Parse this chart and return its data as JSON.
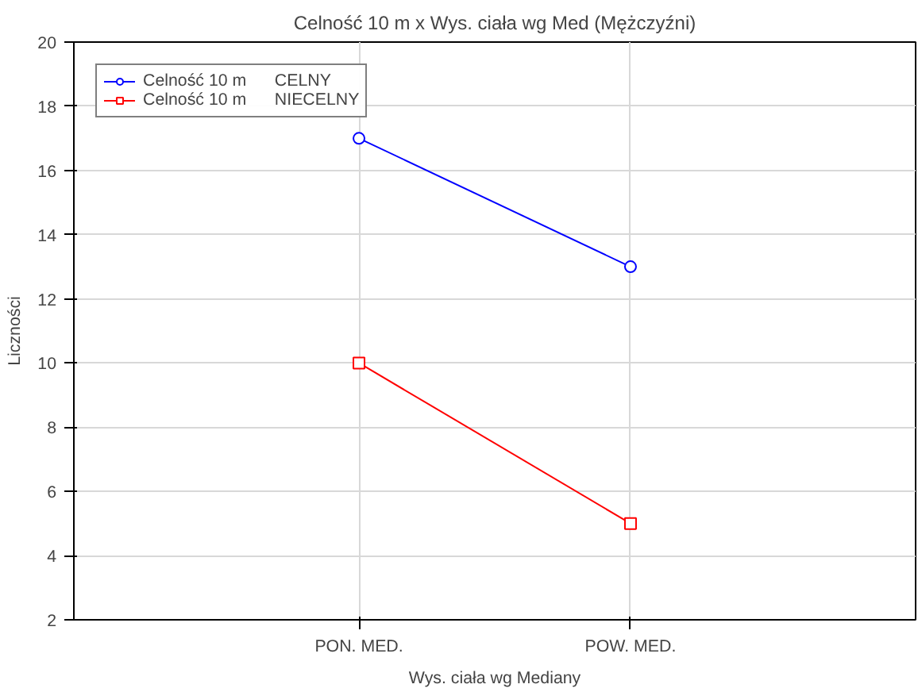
{
  "chart_data": {
    "type": "line",
    "title": "Celność 10 m x Wys. ciała wg Med (Mężczyźni)",
    "xlabel": "Wys. ciała wg Mediany",
    "ylabel": "Liczności",
    "categories": [
      "PON. MED.",
      "POW. MED."
    ],
    "series": [
      {
        "name": "Celność 10 m      CELNY",
        "color": "#0000ff",
        "marker": "circle",
        "values": [
          17,
          13
        ]
      },
      {
        "name": "Celność 10 m      NIECELNY",
        "color": "#ff0000",
        "marker": "square",
        "values": [
          10,
          5
        ]
      }
    ],
    "ylim": [
      2,
      20
    ],
    "yticks": [
      2,
      4,
      6,
      8,
      10,
      12,
      14,
      16,
      18,
      20
    ],
    "grid": true,
    "legend": "top left"
  }
}
